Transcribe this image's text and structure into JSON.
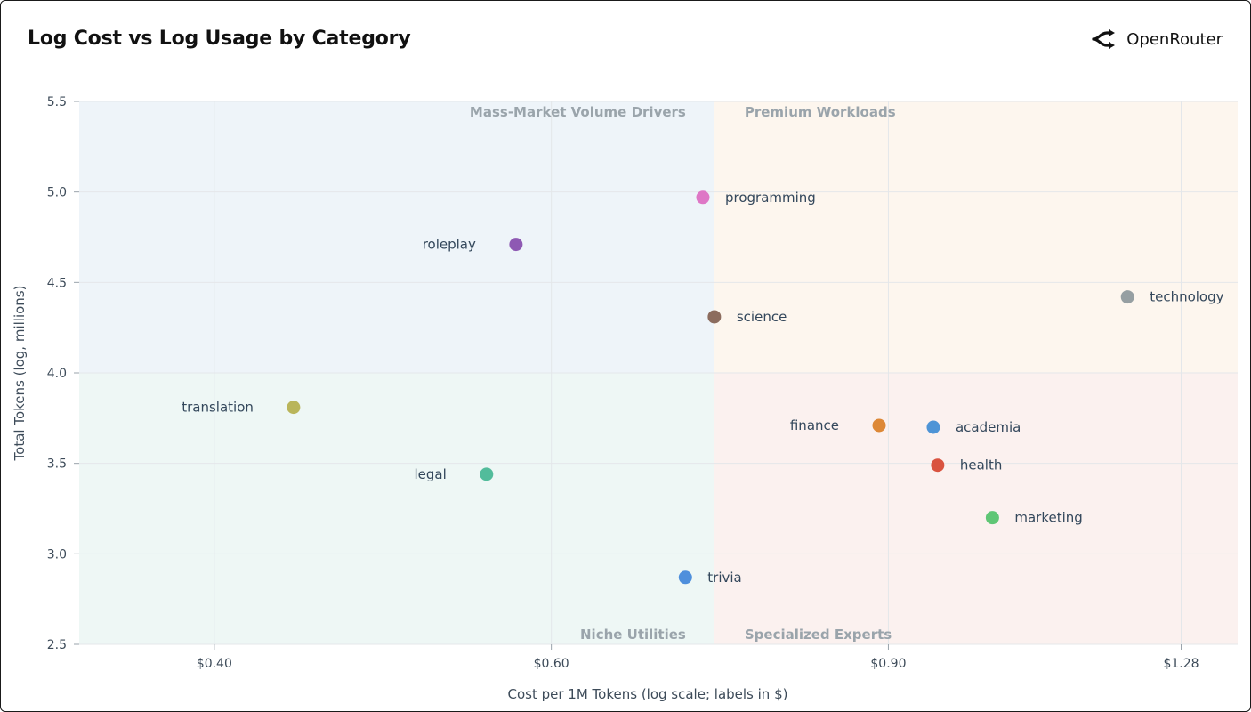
{
  "header": {
    "title": "Log Cost vs Log Usage by Category",
    "brand_name": "OpenRouter"
  },
  "chart_data": {
    "type": "scatter",
    "title": "Log Cost vs Log Usage by Category",
    "xlabel": "Cost per 1M Tokens (log scale; labels in $)",
    "ylabel": "Total Tokens (log, millions)",
    "x_scale": "log",
    "xlim": [
      0.34,
      1.37
    ],
    "ylim": [
      2.5,
      5.5
    ],
    "x_ticks": [
      {
        "value": 0.4,
        "label": "$0.40"
      },
      {
        "value": 0.6,
        "label": "$0.60"
      },
      {
        "value": 0.9,
        "label": "$0.90"
      },
      {
        "value": 1.28,
        "label": "$1.28"
      }
    ],
    "y_ticks": [
      {
        "value": 2.5,
        "label": "2.5"
      },
      {
        "value": 3.0,
        "label": "3.0"
      },
      {
        "value": 3.5,
        "label": "3.5"
      },
      {
        "value": 4.0,
        "label": "4.0"
      },
      {
        "value": 4.5,
        "label": "4.5"
      },
      {
        "value": 5.0,
        "label": "5.0"
      },
      {
        "value": 5.5,
        "label": "5.5"
      }
    ],
    "grid": true,
    "quadrant_split": {
      "x": 0.73,
      "y": 4.0
    },
    "quadrants": [
      {
        "name": "Mass-Market Volume Drivers",
        "position": "top-left",
        "color": "#eef4f9"
      },
      {
        "name": "Premium Workloads",
        "position": "top-right",
        "color": "#fdf6ee"
      },
      {
        "name": "Niche Utilities",
        "position": "bottom-left",
        "color": "#eef7f5"
      },
      {
        "name": "Specialized Experts",
        "position": "bottom-right",
        "color": "#fbf1ef"
      }
    ],
    "points": [
      {
        "label": "programming",
        "x": 0.72,
        "y": 4.97,
        "color": "#de77c6",
        "label_side": "right"
      },
      {
        "label": "roleplay",
        "x": 0.575,
        "y": 4.71,
        "color": "#8e59b3",
        "label_side": "left"
      },
      {
        "label": "technology",
        "x": 1.2,
        "y": 4.42,
        "color": "#969fa2",
        "label_side": "right"
      },
      {
        "label": "science",
        "x": 0.73,
        "y": 4.31,
        "color": "#8c6c5e",
        "label_side": "right"
      },
      {
        "label": "translation",
        "x": 0.44,
        "y": 3.81,
        "color": "#b9b55a",
        "label_side": "left"
      },
      {
        "label": "finance",
        "x": 0.89,
        "y": 3.71,
        "color": "#dd8836",
        "label_side": "left"
      },
      {
        "label": "academia",
        "x": 0.95,
        "y": 3.7,
        "color": "#4e94d6",
        "label_side": "right"
      },
      {
        "label": "legal",
        "x": 0.555,
        "y": 3.44,
        "color": "#52bc9b",
        "label_side": "left"
      },
      {
        "label": "health",
        "x": 0.955,
        "y": 3.49,
        "color": "#d9533f",
        "label_side": "right"
      },
      {
        "label": "marketing",
        "x": 1.02,
        "y": 3.2,
        "color": "#5fc675",
        "label_side": "right"
      },
      {
        "label": "trivia",
        "x": 0.705,
        "y": 2.87,
        "color": "#4e8fdc",
        "label_side": "right"
      }
    ]
  }
}
